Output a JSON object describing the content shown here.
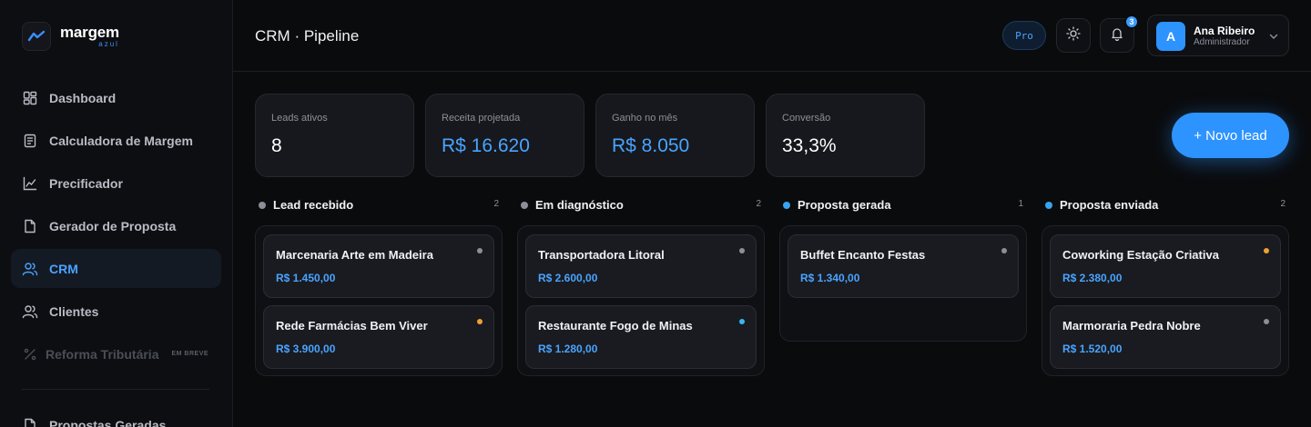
{
  "brand": {
    "name": "margem",
    "sub": "azul",
    "accent": "#3b8fff"
  },
  "sidebar": {
    "items": [
      {
        "label": "Dashboard",
        "icon": "dashboard-icon"
      },
      {
        "label": "Calculadora de Margem",
        "icon": "calculator-icon"
      },
      {
        "label": "Precificador",
        "icon": "chart-line-icon"
      },
      {
        "label": "Gerador de Proposta",
        "icon": "document-icon"
      },
      {
        "label": "CRM",
        "icon": "users-icon",
        "active": true
      },
      {
        "label": "Clientes",
        "icon": "user-icon"
      },
      {
        "label": "Reforma Tributária",
        "icon": "percent-icon",
        "badge": "EM BREVE",
        "disabled": true
      }
    ],
    "bottom_items": [
      {
        "label": "Propostas Geradas",
        "icon": "document-icon"
      }
    ]
  },
  "header": {
    "title": "CRM · Pipeline",
    "plan_badge": "Pro",
    "notification_count": "3",
    "user": {
      "initial": "A",
      "name": "Ana Ribeiro",
      "role": "Administrador"
    }
  },
  "stats": [
    {
      "label": "Leads ativos",
      "value": "8",
      "highlight": false
    },
    {
      "label": "Receita projetada",
      "value": "R$ 16.620",
      "highlight": true
    },
    {
      "label": "Ganho no mês",
      "value": "R$ 8.050",
      "highlight": true
    },
    {
      "label": "Conversão",
      "value": "33,3%",
      "highlight": false
    }
  ],
  "actions": {
    "new_lead": "+ Novo lead"
  },
  "pipeline": [
    {
      "title": "Lead recebido",
      "count": "2",
      "dot_color": "#8b8f98",
      "cards": [
        {
          "title": "Marcenaria Arte em Madeira",
          "value": "R$ 1.450,00",
          "dot_color": "#8b8f98"
        },
        {
          "title": "Rede Farmácias Bem Viver",
          "value": "R$ 3.900,00",
          "dot_color": "#f0a030"
        }
      ]
    },
    {
      "title": "Em diagnóstico",
      "count": "2",
      "dot_color": "#8b8f98",
      "cards": [
        {
          "title": "Transportadora Litoral",
          "value": "R$ 2.600,00",
          "dot_color": "#8b8f98"
        },
        {
          "title": "Restaurante Fogo de Minas",
          "value": "R$ 1.280,00",
          "dot_color": "#38b6f0"
        }
      ]
    },
    {
      "title": "Proposta gerada",
      "count": "1",
      "dot_color": "#38a3f0",
      "cards": [
        {
          "title": "Buffet Encanto Festas",
          "value": "R$ 1.340,00",
          "dot_color": "#8b8f98"
        }
      ]
    },
    {
      "title": "Proposta enviada",
      "count": "2",
      "dot_color": "#38a3f0",
      "cards": [
        {
          "title": "Coworking Estação Criativa",
          "value": "R$ 2.380,00",
          "dot_color": "#f0a030"
        },
        {
          "title": "Marmoraria Pedra Nobre",
          "value": "R$ 1.520,00",
          "dot_color": "#8b8f98"
        }
      ]
    }
  ]
}
